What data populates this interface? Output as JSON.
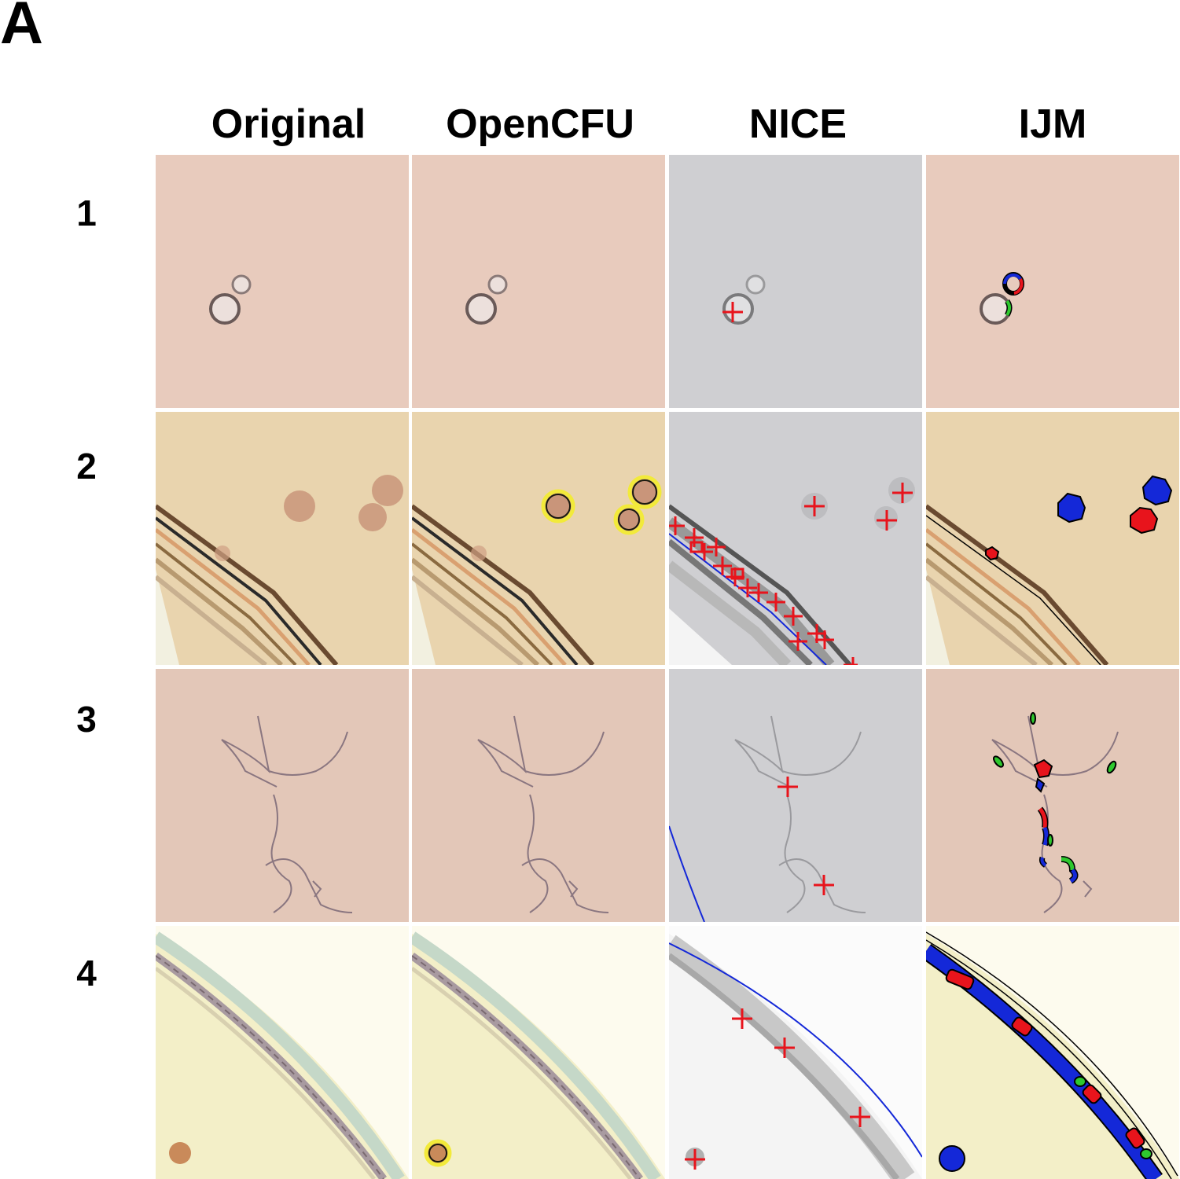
{
  "panel_label": "A",
  "columns": [
    "Original",
    "OpenCFU",
    "NICE",
    "IJM"
  ],
  "rows": [
    "1",
    "2",
    "3",
    "4"
  ],
  "colors": {
    "marker_red": "#e8141c",
    "contour_blue": "#1428d8",
    "blob_green": "#2ec82e",
    "opencfu_yellow": "#f2ea3a",
    "bg_pink": "#e8cbbd",
    "bg_tan": "#e9d4ae",
    "bg_gray": "#cfcfd2",
    "bg_cream": "#f3efc8"
  }
}
